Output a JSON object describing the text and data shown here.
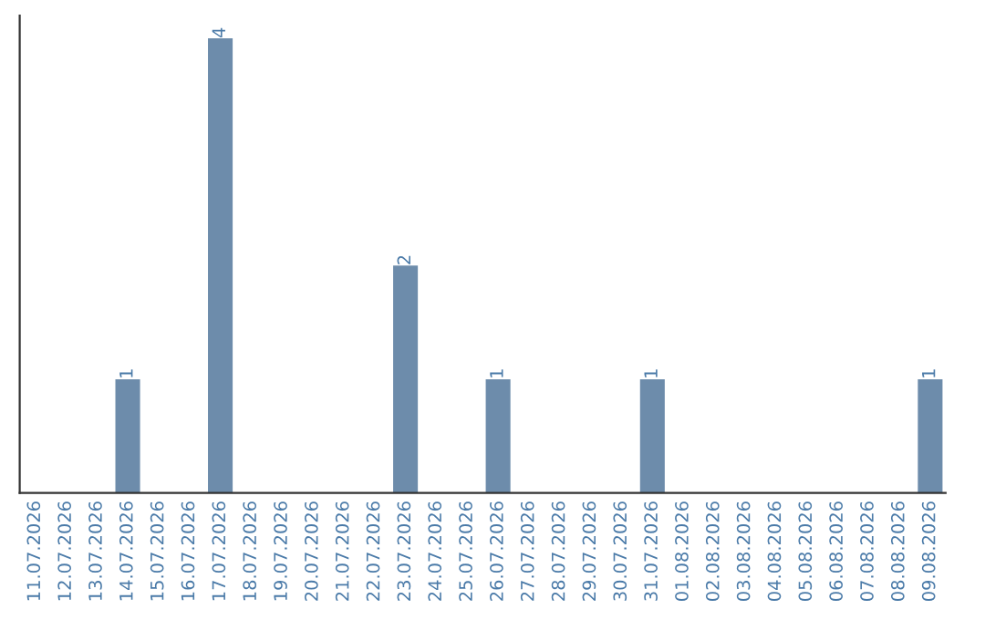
{
  "chart_data": {
    "type": "bar",
    "categories": [
      "11.07.2026",
      "12.07.2026",
      "13.07.2026",
      "14.07.2026",
      "15.07.2026",
      "16.07.2026",
      "17.07.2026",
      "18.07.2026",
      "19.07.2026",
      "20.07.2026",
      "21.07.2026",
      "22.07.2026",
      "23.07.2026",
      "24.07.2026",
      "25.07.2026",
      "26.07.2026",
      "27.07.2026",
      "28.07.2026",
      "29.07.2026",
      "30.07.2026",
      "31.07.2026",
      "01.08.2026",
      "02.08.2026",
      "03.08.2026",
      "04.08.2026",
      "05.08.2026",
      "06.08.2026",
      "07.08.2026",
      "08.08.2026",
      "09.08.2026"
    ],
    "values": [
      0,
      0,
      0,
      1,
      0,
      0,
      4,
      0,
      0,
      0,
      0,
      0,
      2,
      0,
      0,
      1,
      0,
      0,
      0,
      0,
      1,
      0,
      0,
      0,
      0,
      0,
      0,
      0,
      0,
      1
    ],
    "value_labels": [
      null,
      null,
      null,
      "1",
      null,
      null,
      "4",
      null,
      null,
      null,
      null,
      null,
      "2",
      null,
      null,
      "1",
      null,
      null,
      null,
      null,
      "1",
      null,
      null,
      null,
      null,
      null,
      null,
      null,
      null,
      "1"
    ],
    "color": "#6d8cab",
    "grid": false,
    "legend": false
  }
}
